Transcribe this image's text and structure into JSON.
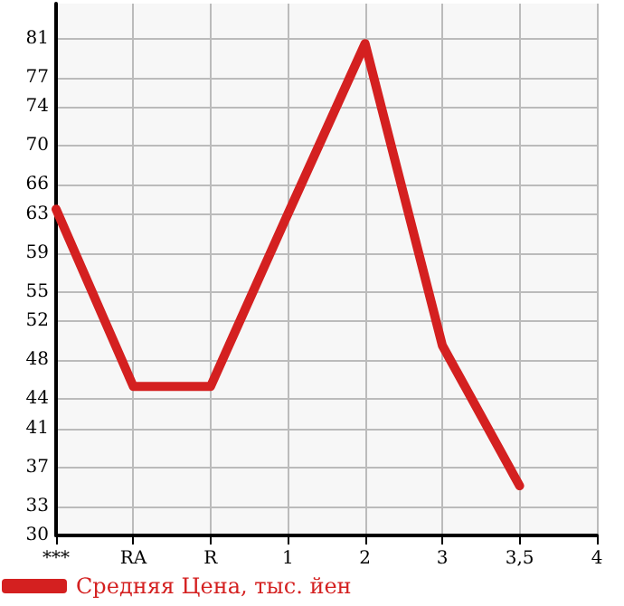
{
  "chart_data": {
    "type": "line",
    "categories": [
      "***",
      "RA",
      "R",
      "1",
      "2",
      "3",
      "3,5",
      "4"
    ],
    "series": [
      {
        "name": "Средняя Цена, тыс. йен",
        "color": "#d42020",
        "values": [
          63.5,
          45.3,
          45.3,
          63,
          80.5,
          49.5,
          35.1,
          null
        ]
      }
    ],
    "ylim": [
      30,
      84.6
    ],
    "yticks": [
      30,
      33,
      37,
      41,
      44,
      48,
      52,
      55,
      59,
      63,
      66,
      70,
      74,
      77,
      81
    ],
    "grid": true,
    "legend": "bottom left",
    "marker": "none",
    "line_style": "solid"
  }
}
